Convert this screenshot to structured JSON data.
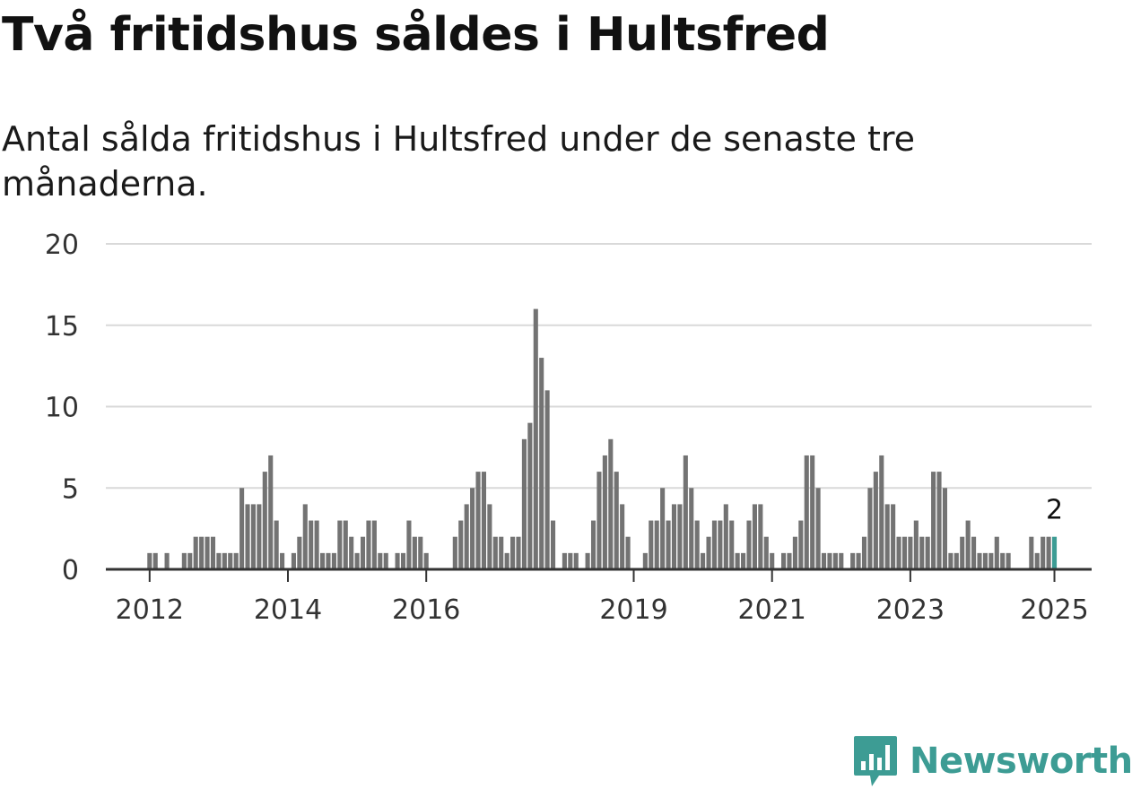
{
  "header": {
    "title": "Två fritidshus såldes i Hultsfred",
    "subtitle": "Antal sålda fritidshus i Hultsfred under de senaste tre månaderna."
  },
  "brand": {
    "name": "Newsworthy",
    "color": "#3d9c94",
    "icon": "newsworthy-logo-icon"
  },
  "chart_data": {
    "type": "bar",
    "title": "Två fritidshus såldes i Hultsfred",
    "subtitle": "Antal sålda fritidshus i Hultsfred under de senaste tre månaderna.",
    "xlabel": "",
    "ylabel": "",
    "x_tick_labels": [
      "2012",
      "2014",
      "2016",
      "2019",
      "2021",
      "2023",
      "2025"
    ],
    "y_ticks": [
      0,
      5,
      10,
      15,
      20
    ],
    "ylim": [
      0,
      20
    ],
    "grid": true,
    "bar_color": "#737373",
    "highlight_color": "#3d9c94",
    "highlight_label": "2",
    "values": [
      1,
      1,
      0,
      1,
      0,
      0,
      1,
      1,
      2,
      2,
      2,
      2,
      1,
      1,
      1,
      1,
      5,
      4,
      4,
      4,
      6,
      7,
      3,
      1,
      0,
      1,
      2,
      4,
      3,
      3,
      1,
      1,
      1,
      3,
      3,
      2,
      1,
      2,
      3,
      3,
      1,
      1,
      0,
      1,
      1,
      3,
      2,
      2,
      1,
      0,
      0,
      0,
      0,
      2,
      3,
      4,
      5,
      6,
      6,
      4,
      2,
      2,
      1,
      2,
      2,
      8,
      9,
      16,
      13,
      11,
      3,
      0,
      1,
      1,
      1,
      0,
      1,
      3,
      6,
      7,
      8,
      6,
      4,
      2,
      0,
      0,
      1,
      3,
      3,
      5,
      3,
      4,
      4,
      7,
      5,
      3,
      1,
      2,
      3,
      3,
      4,
      3,
      1,
      1,
      3,
      4,
      4,
      2,
      1,
      0,
      1,
      1,
      2,
      3,
      7,
      7,
      5,
      1,
      1,
      1,
      1,
      0,
      1,
      1,
      2,
      5,
      6,
      7,
      4,
      4,
      2,
      2,
      2,
      3,
      2,
      2,
      6,
      6,
      5,
      1,
      1,
      2,
      3,
      2,
      1,
      1,
      1,
      2,
      1,
      1,
      0,
      0,
      0,
      2,
      1,
      2,
      2,
      2
    ]
  }
}
